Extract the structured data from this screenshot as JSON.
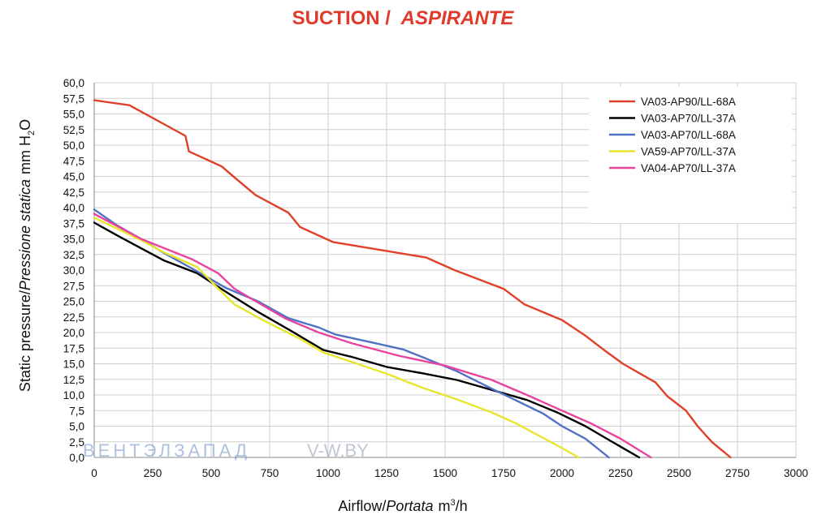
{
  "chart_data": {
    "type": "line",
    "title_main": "SUCTION /",
    "title_italic": "ASPIRANTE",
    "xlabel": {
      "regular": "Airflow",
      "italic": "Portata",
      "unit_base": "m",
      "unit_sup": "3",
      "unit_tail": "/h"
    },
    "ylabel": {
      "regular": "Static pressure",
      "italic": "Pressione statica",
      "unit_head": "mm H",
      "unit_sub": "2",
      "unit_tail": "O"
    },
    "xlim": [
      0,
      3000
    ],
    "ylim": [
      0,
      60
    ],
    "x_ticks": [
      0,
      250,
      500,
      750,
      1000,
      1250,
      1500,
      1750,
      2000,
      2250,
      2500,
      2750,
      3000
    ],
    "x_tick_labels": [
      "0",
      "250",
      "500",
      "750",
      "1000",
      "1250",
      "1500",
      "1750",
      "2000",
      "2250",
      "2500",
      "2750",
      "3000"
    ],
    "y_ticks": [
      0,
      2.5,
      5,
      7.5,
      10,
      12.5,
      15,
      17.5,
      20,
      22.5,
      25,
      27.5,
      30,
      32.5,
      35,
      37.5,
      40,
      42.5,
      45,
      47.5,
      50,
      52.5,
      55,
      57.5,
      60
    ],
    "y_tick_labels": [
      "0,0",
      "2,5",
      "5,0",
      "7,5",
      "10,0",
      "12,5",
      "15,0",
      "17,5",
      "20,0",
      "22,5",
      "25,0",
      "27,5",
      "30,0",
      "32,5",
      "35,0",
      "37,5",
      "40,0",
      "42,5",
      "45,0",
      "47,5",
      "50,0",
      "52,5",
      "55,0",
      "57,5",
      "60,0"
    ],
    "grid": true,
    "legend_position": "top-right",
    "series": [
      {
        "name": "VA03-AP90/LL-68A",
        "color": "#e0402a",
        "x": [
          0,
          150,
          390,
          405,
          545,
          610,
          690,
          830,
          880,
          1020,
          1420,
          1540,
          1750,
          1840,
          2000,
          2100,
          2180,
          2260,
          2400,
          2450,
          2530,
          2580,
          2640,
          2720
        ],
        "y": [
          57.2,
          56.4,
          51.5,
          49.0,
          46.6,
          44.5,
          42.0,
          39.2,
          36.9,
          34.5,
          32.0,
          30.0,
          27.0,
          24.5,
          22.0,
          19.5,
          17.2,
          15.0,
          12.0,
          9.8,
          7.5,
          5.0,
          2.5,
          0.0
        ]
      },
      {
        "name": "VA03-AP70/LL-37A",
        "color": "#000000",
        "x": [
          0,
          100,
          200,
          300,
          440,
          560,
          700,
          840,
          980,
          1100,
          1250,
          1400,
          1550,
          1700,
          1850,
          1980,
          2100,
          2200,
          2330
        ],
        "y": [
          37.6,
          35.5,
          33.5,
          31.5,
          29.5,
          26.6,
          23.3,
          20.3,
          17.2,
          16.1,
          14.5,
          13.5,
          12.4,
          10.8,
          9.2,
          7.2,
          5.0,
          2.8,
          0.0
        ]
      },
      {
        "name": "VA03-AP70/LL-68A",
        "color": "#4f72c4",
        "x": [
          0,
          100,
          200,
          300,
          430,
          560,
          700,
          830,
          960,
          1030,
          1200,
          1320,
          1420,
          1550,
          1700,
          1800,
          1920,
          2000,
          2100,
          2200
        ],
        "y": [
          39.7,
          37.1,
          35.0,
          32.7,
          30.0,
          27.2,
          25.0,
          22.3,
          20.8,
          19.7,
          18.3,
          17.3,
          15.8,
          13.8,
          11.0,
          9.2,
          7.0,
          5.0,
          3.0,
          0.0
        ]
      },
      {
        "name": "VA59-AP70/LL-37A",
        "color": "#e6e62e",
        "x": [
          0,
          100,
          200,
          300,
          440,
          520,
          600,
          720,
          880,
          980,
          1100,
          1250,
          1400,
          1550,
          1700,
          1800,
          1900,
          2000,
          2070
        ],
        "y": [
          38.4,
          36.6,
          34.8,
          32.8,
          30.5,
          27.4,
          24.5,
          22.0,
          19.0,
          16.8,
          15.3,
          13.4,
          11.2,
          9.3,
          7.2,
          5.5,
          3.5,
          1.5,
          0.0
        ]
      },
      {
        "name": "VA04-AP70/LL-37A",
        "color": "#e8449e",
        "x": [
          0,
          100,
          200,
          300,
          420,
          530,
          600,
          700,
          820,
          960,
          1100,
          1300,
          1500,
          1700,
          1850,
          2000,
          2120,
          2250,
          2380
        ],
        "y": [
          39.0,
          37.0,
          35.0,
          33.5,
          31.7,
          29.5,
          27.0,
          24.8,
          22.2,
          20.0,
          18.3,
          16.3,
          14.7,
          12.4,
          10.0,
          7.5,
          5.5,
          3.0,
          0.0
        ]
      }
    ]
  },
  "watermark": {
    "brand": "ВЕНТЭЛЗАПАД",
    "site": "V-W.BY"
  }
}
